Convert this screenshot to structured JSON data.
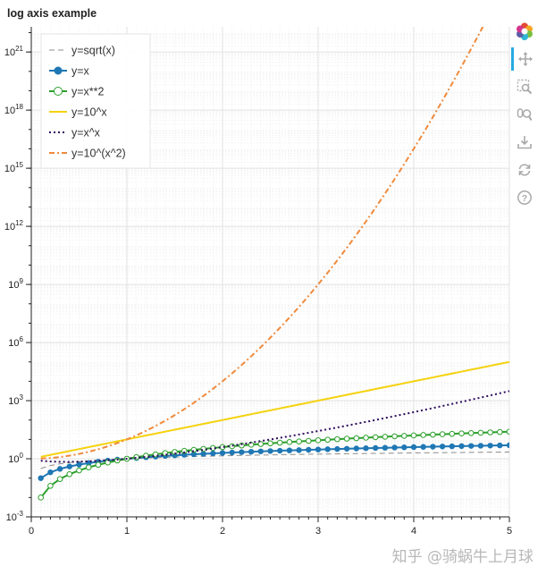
{
  "chart_data": {
    "type": "line",
    "title": "log axis example",
    "xlabel": "",
    "ylabel": "",
    "xlim": [
      0,
      5
    ],
    "ylim_log10": [
      -3,
      22.3
    ],
    "y_scale": "log",
    "x_ticks": [
      "0",
      "1",
      "2",
      "3",
      "4",
      "5"
    ],
    "y_ticks": [
      {
        "base": "10",
        "exp": "-3"
      },
      {
        "base": "10",
        "exp": "0"
      },
      {
        "base": "10",
        "exp": "3"
      },
      {
        "base": "10",
        "exp": "6"
      },
      {
        "base": "10",
        "exp": "9"
      },
      {
        "base": "10",
        "exp": "12"
      },
      {
        "base": "10",
        "exp": "15"
      },
      {
        "base": "10",
        "exp": "18"
      },
      {
        "base": "10",
        "exp": "21"
      }
    ],
    "legend_position": "top-left",
    "x_values": {
      "start": 0.1,
      "stop": 5.0,
      "step": 0.1
    },
    "series": [
      {
        "name": "y=sqrt(x)",
        "formula": "sqrt",
        "style": "dashed",
        "color": "#8c8c8c",
        "marker": "none"
      },
      {
        "name": "y=x",
        "formula": "x",
        "style": "solid",
        "color": "#1f77b4",
        "marker": "filled-circle"
      },
      {
        "name": "y=x**2",
        "formula": "x2",
        "style": "solid",
        "color": "#2ca02c",
        "marker": "open-circle"
      },
      {
        "name": "y=10^x",
        "formula": "10x",
        "style": "solid",
        "color": "#f5d20f",
        "marker": "none"
      },
      {
        "name": "y=x^x",
        "formula": "xx",
        "style": "dotted",
        "color": "#2e0a5c",
        "marker": "none"
      },
      {
        "name": "y=10^(x^2)",
        "formula": "10x2",
        "style": "dashdot",
        "color": "#ef8a3c",
        "marker": "none"
      }
    ]
  },
  "toolbar": {
    "tools": [
      "bokeh-logo-icon",
      "pan-icon",
      "box-zoom-icon",
      "wheel-zoom-icon",
      "save-icon",
      "reset-icon",
      "help-icon"
    ]
  },
  "watermark": {
    "text": "知乎 @骑蜗牛上月球"
  }
}
